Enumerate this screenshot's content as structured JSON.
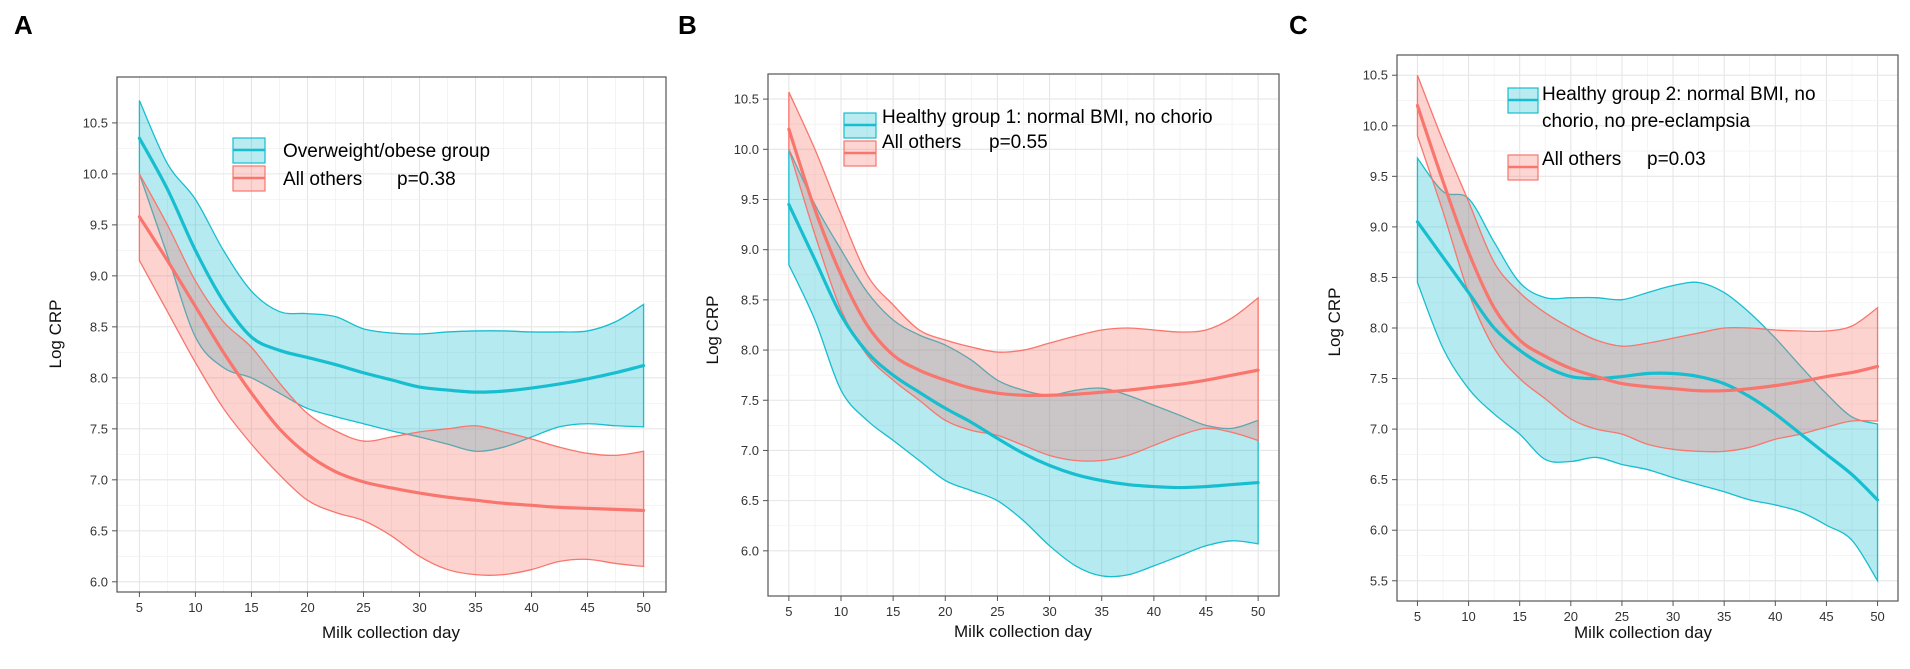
{
  "chart_data": [
    {
      "id": "A",
      "panel_label": "A",
      "type": "line",
      "band": "confidence",
      "xlabel": "Milk collection day",
      "ylabel": "Log CRP",
      "xlim": [
        3,
        52
      ],
      "ylim": [
        5.9,
        10.95
      ],
      "xticks": [
        5,
        10,
        15,
        20,
        25,
        30,
        35,
        40,
        45,
        50
      ],
      "yticks": [
        6.0,
        6.5,
        7.0,
        7.5,
        8.0,
        8.5,
        9.0,
        9.5,
        10.0,
        10.5
      ],
      "ytick_labels": [
        "6.0",
        "6.5",
        "7.0",
        "7.5",
        "8.0",
        "8.5",
        "9.0",
        "9.5",
        "10.0",
        "10.5"
      ],
      "legend": {
        "placement": "top-center",
        "annotation": "p=0.38"
      },
      "series": [
        {
          "name": "Overweight/obese group",
          "color": "#17becf",
          "x": [
            5,
            7.5,
            10,
            12.5,
            15,
            17.5,
            20,
            22.5,
            25,
            27.5,
            30,
            32.5,
            35,
            37.5,
            40,
            42.5,
            45,
            47.5,
            50
          ],
          "y": [
            10.35,
            9.85,
            9.25,
            8.75,
            8.4,
            8.27,
            8.2,
            8.13,
            8.05,
            7.98,
            7.91,
            7.88,
            7.86,
            7.87,
            7.9,
            7.94,
            7.99,
            8.05,
            8.12
          ],
          "lower": [
            10.0,
            9.2,
            8.4,
            8.1,
            8.0,
            7.85,
            7.7,
            7.62,
            7.55,
            7.48,
            7.42,
            7.35,
            7.28,
            7.32,
            7.42,
            7.52,
            7.55,
            7.53,
            7.52
          ],
          "upper": [
            10.72,
            10.1,
            9.75,
            9.25,
            8.85,
            8.65,
            8.63,
            8.6,
            8.48,
            8.44,
            8.43,
            8.45,
            8.46,
            8.46,
            8.45,
            8.45,
            8.46,
            8.55,
            8.72
          ]
        },
        {
          "name": "All others",
          "color": "#f8766d",
          "x": [
            5,
            7.5,
            10,
            12.5,
            15,
            17.5,
            20,
            22.5,
            25,
            27.5,
            30,
            32.5,
            35,
            37.5,
            40,
            42.5,
            45,
            47.5,
            50
          ],
          "y": [
            9.58,
            9.15,
            8.7,
            8.25,
            7.85,
            7.5,
            7.25,
            7.08,
            6.98,
            6.92,
            6.87,
            6.83,
            6.8,
            6.77,
            6.75,
            6.73,
            6.72,
            6.71,
            6.7
          ],
          "lower": [
            9.15,
            8.65,
            8.15,
            7.7,
            7.35,
            7.05,
            6.8,
            6.68,
            6.6,
            6.45,
            6.25,
            6.12,
            6.07,
            6.07,
            6.12,
            6.2,
            6.22,
            6.18,
            6.15
          ],
          "upper": [
            10.0,
            9.5,
            8.95,
            8.55,
            8.3,
            7.95,
            7.65,
            7.48,
            7.38,
            7.42,
            7.47,
            7.5,
            7.53,
            7.47,
            7.4,
            7.32,
            7.26,
            7.24,
            7.28
          ]
        }
      ]
    },
    {
      "id": "B",
      "panel_label": "B",
      "type": "line",
      "band": "confidence",
      "xlabel": "Milk collection day",
      "ylabel": "Log CRP",
      "xlim": [
        3,
        52
      ],
      "ylim": [
        5.55,
        10.75
      ],
      "xticks": [
        5,
        10,
        15,
        20,
        25,
        30,
        35,
        40,
        45,
        50
      ],
      "yticks": [
        6.0,
        6.5,
        7.0,
        7.5,
        8.0,
        8.5,
        9.0,
        9.5,
        10.0,
        10.5
      ],
      "ytick_labels": [
        "6.0",
        "6.5",
        "7.0",
        "7.5",
        "8.0",
        "8.5",
        "9.0",
        "9.5",
        "10.0",
        "10.5"
      ],
      "legend": {
        "placement": "top-right",
        "annotation": "p=0.55"
      },
      "series": [
        {
          "name": "Healthy group 1: normal BMI, no chorio",
          "color": "#17becf",
          "x": [
            5,
            7.5,
            10,
            12.5,
            15,
            17.5,
            20,
            22.5,
            25,
            27.5,
            30,
            32.5,
            35,
            37.5,
            40,
            42.5,
            45,
            47.5,
            50
          ],
          "y": [
            9.45,
            8.9,
            8.35,
            7.98,
            7.75,
            7.58,
            7.42,
            7.28,
            7.12,
            6.97,
            6.85,
            6.76,
            6.7,
            6.66,
            6.64,
            6.63,
            6.64,
            6.66,
            6.68
          ],
          "lower": [
            8.85,
            8.3,
            7.6,
            7.3,
            7.1,
            6.9,
            6.7,
            6.6,
            6.5,
            6.3,
            6.05,
            5.85,
            5.75,
            5.76,
            5.85,
            5.95,
            6.05,
            6.1,
            6.07
          ],
          "upper": [
            10.0,
            9.45,
            9.0,
            8.58,
            8.3,
            8.15,
            8.05,
            7.9,
            7.7,
            7.6,
            7.55,
            7.6,
            7.62,
            7.55,
            7.45,
            7.35,
            7.25,
            7.22,
            7.3
          ]
        },
        {
          "name": "All others",
          "color": "#f8766d",
          "x": [
            5,
            7.5,
            10,
            12.5,
            15,
            17.5,
            20,
            22.5,
            25,
            27.5,
            30,
            32.5,
            35,
            37.5,
            40,
            42.5,
            45,
            47.5,
            50
          ],
          "y": [
            10.2,
            9.4,
            8.75,
            8.25,
            7.95,
            7.8,
            7.7,
            7.62,
            7.57,
            7.55,
            7.55,
            7.56,
            7.58,
            7.6,
            7.63,
            7.66,
            7.7,
            7.75,
            7.8
          ],
          "lower": [
            10.0,
            9.15,
            8.4,
            7.95,
            7.7,
            7.5,
            7.3,
            7.2,
            7.15,
            7.05,
            6.95,
            6.9,
            6.9,
            6.95,
            7.05,
            7.15,
            7.22,
            7.18,
            7.1
          ],
          "upper": [
            10.57,
            10.0,
            9.35,
            8.75,
            8.45,
            8.2,
            8.1,
            8.03,
            7.98,
            8.0,
            8.07,
            8.14,
            8.2,
            8.22,
            8.2,
            8.18,
            8.2,
            8.32,
            8.52
          ]
        }
      ]
    },
    {
      "id": "C",
      "panel_label": "C",
      "type": "line",
      "band": "confidence",
      "xlabel": "Milk collection day",
      "ylabel": "Log CRP",
      "xlim": [
        3,
        52
      ],
      "ylim": [
        5.3,
        10.7
      ],
      "xticks": [
        5,
        10,
        15,
        20,
        25,
        30,
        35,
        40,
        45,
        50
      ],
      "yticks": [
        5.5,
        6.0,
        6.5,
        7.0,
        7.5,
        8.0,
        8.5,
        9.0,
        9.5,
        10.0,
        10.5
      ],
      "ytick_labels": [
        "5.5",
        "6.0",
        "6.5",
        "7.0",
        "7.5",
        "8.0",
        "8.5",
        "9.0",
        "9.5",
        "10.0",
        "10.5"
      ],
      "legend": {
        "placement": "top-right",
        "annotation": "p=0.03"
      },
      "series": [
        {
          "name": "Healthy group 2: normal BMI, no chorio, no pre-eclampsia",
          "legend_lines": [
            "Healthy group 2: normal BMI, no",
            "chorio, no pre-eclampsia"
          ],
          "color": "#17becf",
          "x": [
            5,
            7.5,
            10,
            12.5,
            15,
            17.5,
            20,
            22.5,
            25,
            27.5,
            30,
            32.5,
            35,
            37.5,
            40,
            42.5,
            45,
            47.5,
            50
          ],
          "y": [
            9.05,
            8.7,
            8.35,
            8.0,
            7.78,
            7.62,
            7.52,
            7.5,
            7.52,
            7.55,
            7.55,
            7.52,
            7.45,
            7.32,
            7.15,
            6.95,
            6.75,
            6.55,
            6.3
          ],
          "lower": [
            8.45,
            7.8,
            7.4,
            7.15,
            6.95,
            6.7,
            6.68,
            6.72,
            6.65,
            6.6,
            6.52,
            6.45,
            6.38,
            6.3,
            6.25,
            6.18,
            6.05,
            5.9,
            5.5
          ],
          "upper": [
            9.68,
            9.35,
            9.28,
            8.85,
            8.45,
            8.3,
            8.3,
            8.3,
            8.28,
            8.35,
            8.42,
            8.45,
            8.35,
            8.15,
            7.9,
            7.62,
            7.35,
            7.12,
            7.05
          ]
        },
        {
          "name": "All others",
          "color": "#f8766d",
          "x": [
            5,
            7.5,
            10,
            12.5,
            15,
            17.5,
            20,
            22.5,
            25,
            27.5,
            30,
            32.5,
            35,
            37.5,
            40,
            42.5,
            45,
            47.5,
            50
          ],
          "y": [
            10.2,
            9.45,
            8.75,
            8.2,
            7.88,
            7.72,
            7.6,
            7.52,
            7.45,
            7.42,
            7.4,
            7.38,
            7.38,
            7.4,
            7.43,
            7.47,
            7.52,
            7.56,
            7.62
          ],
          "lower": [
            9.9,
            9.15,
            8.35,
            7.8,
            7.5,
            7.3,
            7.1,
            7.0,
            6.95,
            6.85,
            6.8,
            6.78,
            6.78,
            6.82,
            6.9,
            6.95,
            7.02,
            7.08,
            7.08
          ],
          "upper": [
            10.5,
            9.85,
            9.25,
            8.65,
            8.35,
            8.15,
            8.0,
            7.88,
            7.82,
            7.85,
            7.9,
            7.95,
            8.0,
            8.0,
            7.98,
            7.97,
            7.97,
            8.02,
            8.2
          ]
        }
      ]
    }
  ]
}
